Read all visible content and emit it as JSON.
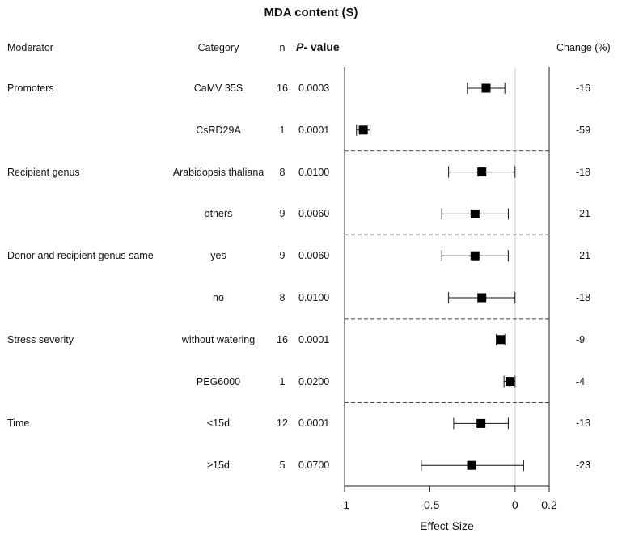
{
  "header": {
    "title": "MDA content (S)",
    "moderator": "Moderator",
    "category": "Category",
    "n": "n",
    "p_prefix": "P",
    "p_suffix": "- value",
    "change": "Change (%)"
  },
  "chart_data": {
    "type": "forest",
    "title": "MDA content (S)",
    "xlabel": "Effect Size",
    "xlim": [
      -1,
      0.2
    ],
    "xticks": [
      -1,
      -0.5,
      0,
      0.2
    ],
    "xtick_labels": [
      "-1",
      "-0.5",
      "0",
      "0.2"
    ],
    "reference_line": 0,
    "rows": [
      {
        "moderator": "Promoters",
        "category": "CaMV 35S",
        "n": "16",
        "p": "0.0003",
        "change": "-16",
        "effect": -0.17,
        "ci": [
          -0.28,
          -0.06
        ]
      },
      {
        "moderator": "",
        "category": "CsRD29A",
        "n": "1",
        "p": "0.0001",
        "change": "-59",
        "effect": -0.89,
        "ci": [
          -0.93,
          -0.85
        ]
      },
      {
        "moderator": "Recipient genus",
        "category": "Arabidopsis thaliana",
        "n": "8",
        "p": "0.0100",
        "change": "-18",
        "effect": -0.195,
        "ci": [
          -0.39,
          0.0
        ]
      },
      {
        "moderator": "",
        "category": "others",
        "n": "9",
        "p": "0.0060",
        "change": "-21",
        "effect": -0.235,
        "ci": [
          -0.43,
          -0.04
        ]
      },
      {
        "moderator": "Donor and recipient genus same",
        "category": "yes",
        "n": "9",
        "p": "0.0060",
        "change": "-21",
        "effect": -0.235,
        "ci": [
          -0.43,
          -0.04
        ]
      },
      {
        "moderator": "",
        "category": "no",
        "n": "8",
        "p": "0.0100",
        "change": "-18",
        "effect": -0.195,
        "ci": [
          -0.39,
          0.0
        ]
      },
      {
        "moderator": "Stress severity",
        "category": "without watering",
        "n": "16",
        "p": "0.0001",
        "change": "-9",
        "effect": -0.085,
        "ci": [
          -0.11,
          -0.06
        ]
      },
      {
        "moderator": "",
        "category": "PEG6000",
        "n": "1",
        "p": "0.0200",
        "change": "-4",
        "effect": -0.03,
        "ci": [
          -0.065,
          0.0
        ]
      },
      {
        "moderator": "Time",
        "category": "<15d",
        "n": "12",
        "p": "0.0001",
        "change": "-18",
        "effect": -0.2,
        "ci": [
          -0.36,
          -0.04
        ]
      },
      {
        "moderator": "",
        "category": "≥15d",
        "n": "5",
        "p": "0.0700",
        "change": "-23",
        "effect": -0.255,
        "ci": [
          -0.55,
          0.05
        ]
      }
    ],
    "group_separators_after_rows": [
      1,
      3,
      5,
      7
    ]
  }
}
